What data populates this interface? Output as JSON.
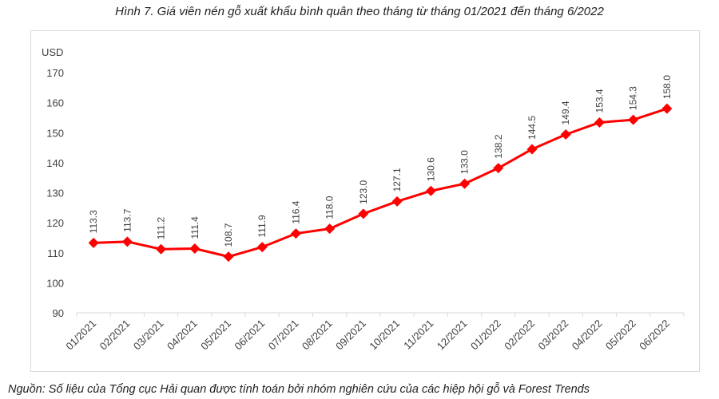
{
  "title": "Hình 7. Giá viên nén gỗ xuất khẩu bình quân theo tháng từ tháng 01/2021 đến tháng 6/2022",
  "source": "Nguồn: Số liệu của Tổng cục Hải quan được tính toán bởi nhóm nghiên cứu của các hiệp hội gỗ và Forest Trends",
  "chart_data": {
    "type": "line",
    "ylabel": "USD",
    "ylim": [
      90,
      170
    ],
    "yticks": [
      90,
      100,
      110,
      120,
      130,
      140,
      150,
      160,
      170
    ],
    "grid": false,
    "categories": [
      "01/2021",
      "02/2021",
      "03/2021",
      "04/2021",
      "05/2021",
      "06/2021",
      "07/2021",
      "08/2021",
      "09/2021",
      "10/2021",
      "11/2021",
      "12/2021",
      "01/2022",
      "02/2022",
      "03/2022",
      "04/2022",
      "05/2022",
      "06/2022"
    ],
    "values": [
      113.3,
      113.7,
      111.2,
      111.4,
      108.7,
      111.9,
      116.4,
      118.0,
      123.0,
      127.1,
      130.6,
      133.0,
      138.2,
      144.5,
      149.4,
      153.4,
      154.3,
      158.0
    ],
    "data_labels": [
      "113.3",
      "113.7",
      "111.2",
      "111.4",
      "108.7",
      "111.9",
      "116.4",
      "118.0",
      "123.0",
      "127.1",
      "130.6",
      "133.0",
      "138.2",
      "144.5",
      "149.4",
      "153.4",
      "154.3",
      "158.0"
    ],
    "line_color": "#ff0000",
    "marker": "diamond"
  }
}
